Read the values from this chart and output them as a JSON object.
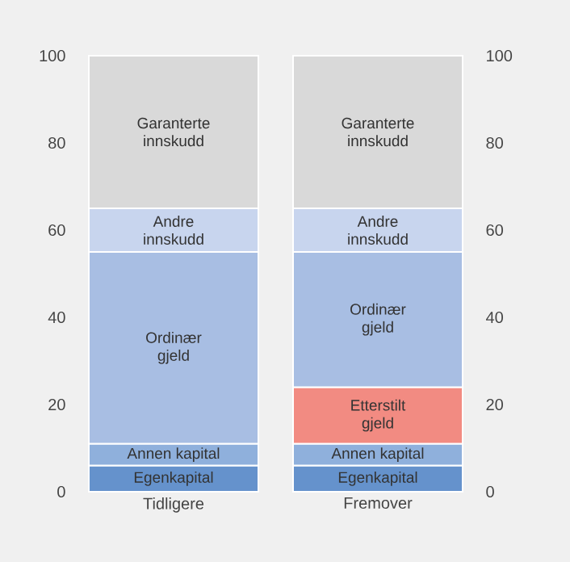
{
  "chart_data": {
    "type": "bar",
    "stacked": true,
    "categories": [
      "Tidligere",
      "Fremover"
    ],
    "series": [
      {
        "name": "Egenkapital",
        "color": "#6592cc",
        "values": [
          6,
          6
        ]
      },
      {
        "name": "Annen kapital",
        "color": "#8fb0dc",
        "values": [
          5,
          5
        ]
      },
      {
        "name": "Etterstilt gjeld",
        "color": "#f28b82",
        "values": [
          null,
          13
        ]
      },
      {
        "name": "Ordinær gjeld",
        "color": "#a8bee3",
        "values": [
          44,
          31
        ]
      },
      {
        "name": "Andre innskudd",
        "color": "#c8d5ee",
        "values": [
          10,
          10
        ]
      },
      {
        "name": "Garanterte innskudd",
        "color": "#d9d9d9",
        "values": [
          35,
          35
        ]
      }
    ],
    "ylim": [
      0,
      100
    ],
    "yticks": [
      0,
      20,
      40,
      60,
      80,
      100
    ],
    "y2lim": [
      0,
      100
    ],
    "y2ticks": [
      0,
      20,
      40,
      60,
      80,
      100
    ],
    "grid": false
  }
}
